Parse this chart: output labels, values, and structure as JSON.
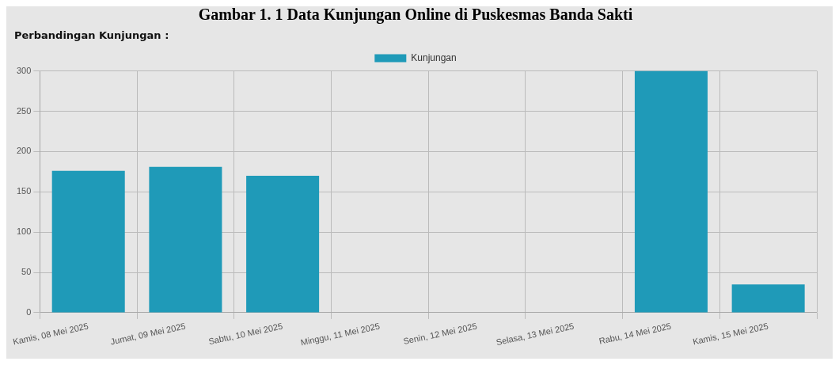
{
  "chart_data": {
    "type": "bar",
    "title": "Gambar 1. 1 Data Kunjungan Online di Puskesmas Banda Sakti",
    "subtitle": "Perbandingan Kunjungan :",
    "categories": [
      "Kamis, 08 Mei 2025",
      "Jumat, 09 Mei 2025",
      "Sabtu, 10 Mei 2025",
      "Minggu, 11 Mei 2025",
      "Senin, 12 Mei 2025",
      "Selasa, 13 Mei 2025",
      "Rabu, 14 Mei 2025",
      "Kamis, 15 Mei 2025"
    ],
    "series": [
      {
        "name": "Kunjungan",
        "color": "#1f9ab8",
        "values": [
          176,
          181,
          170,
          0,
          0,
          0,
          300,
          35
        ]
      }
    ],
    "ylim": [
      0,
      300
    ],
    "yticks": [
      0,
      50,
      100,
      150,
      200,
      250,
      300
    ],
    "grid": true,
    "legend": "top"
  }
}
